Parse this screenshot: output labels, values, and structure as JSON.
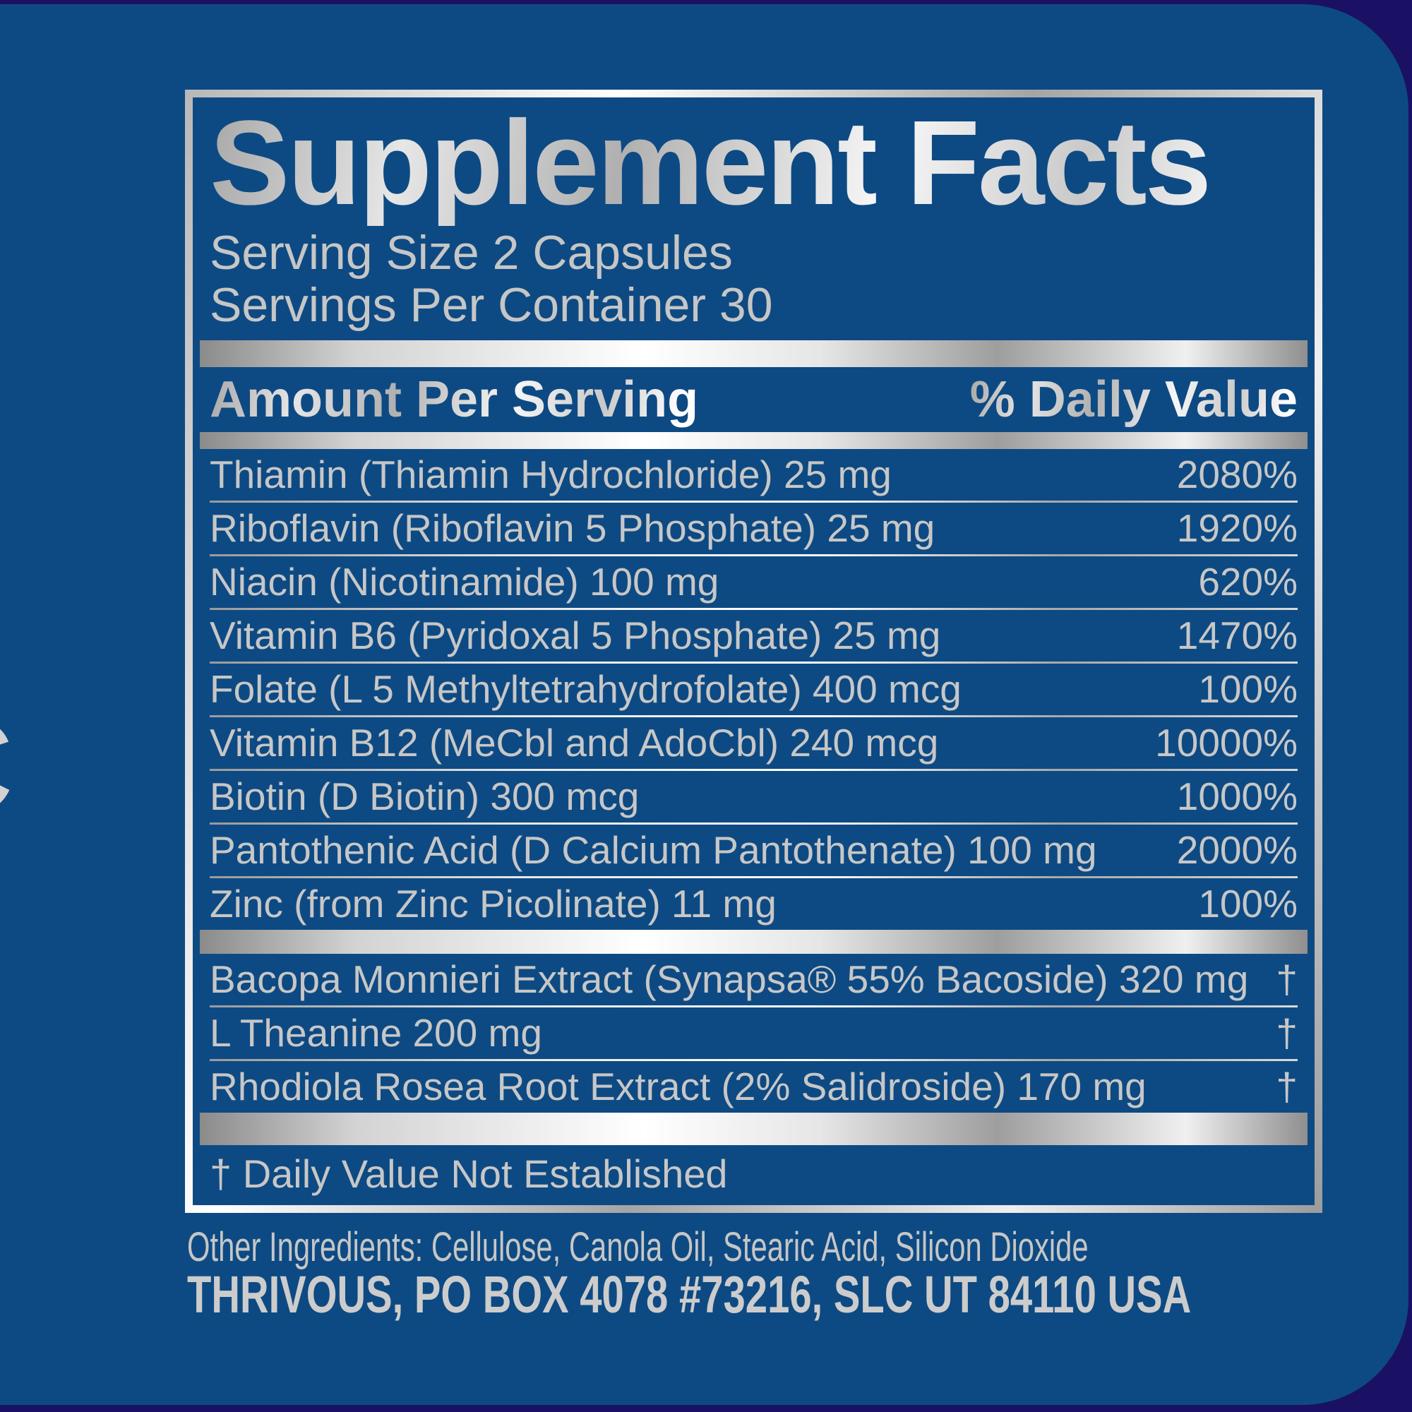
{
  "page": {
    "background_navy": "#1b1164",
    "label_blue": "#0d4a83",
    "silver_text": "#c7c7c7"
  },
  "label": {
    "partial_letter": "C",
    "panel": {
      "title": "Supplement Facts",
      "serving_size": "Serving Size 2 Capsules",
      "servings_per_container": "Servings Per Container 30",
      "amount_header": "Amount Per Serving",
      "dv_header": "% Daily Value",
      "nutrients": [
        {
          "name": "Thiamin (Thiamin Hydrochloride) 25 mg",
          "dv": "2080%"
        },
        {
          "name": "Riboflavin (Riboflavin 5 Phosphate) 25 mg",
          "dv": "1920%"
        },
        {
          "name": "Niacin (Nicotinamide) 100 mg",
          "dv": "620%"
        },
        {
          "name": "Vitamin B6 (Pyridoxal 5 Phosphate) 25 mg",
          "dv": "1470%"
        },
        {
          "name": "Folate (L 5 Methyltetrahydrofolate) 400 mcg",
          "dv": "100%"
        },
        {
          "name": "Vitamin B12 (MeCbl and AdoCbl) 240 mcg",
          "dv": "10000%"
        },
        {
          "name": "Biotin (D Biotin) 300 mcg",
          "dv": "1000%"
        },
        {
          "name": "Pantothenic Acid (D Calcium Pantothenate) 100 mg",
          "dv": "2000%"
        },
        {
          "name": "Zinc (from Zinc Picolinate) 11 mg",
          "dv": "100%"
        }
      ],
      "botanicals": [
        {
          "name": "Bacopa Monnieri Extract (Synapsa® 55% Bacoside) 320 mg",
          "dv": "†"
        },
        {
          "name": "L Theanine 200 mg",
          "dv": "†"
        },
        {
          "name": "Rhodiola Rosea Root Extract (2% Salidroside) 170 mg",
          "dv": "†"
        }
      ],
      "footnote": "† Daily Value Not Established"
    },
    "other_ingredients": "Other Ingredients: Cellulose, Canola Oil, Stearic Acid, Silicon Dioxide",
    "manufacturer": "THRIVOUS, PO BOX 4078 #73216, SLC UT 84110 USA"
  }
}
